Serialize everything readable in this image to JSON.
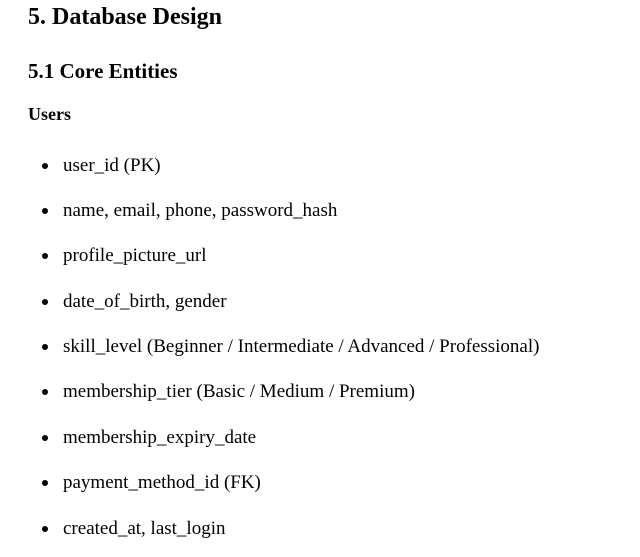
{
  "section": {
    "heading": "5. Database Design",
    "subheading": "5.1 Core Entities",
    "entity": {
      "name": "Users",
      "fields": [
        "user_id (PK)",
        "name, email, phone, password_hash",
        "profile_picture_url",
        "date_of_birth, gender",
        "skill_level (Beginner / Intermediate / Advanced / Professional)",
        "membership_tier (Basic / Medium / Premium)",
        "membership_expiry_date",
        "payment_method_id (FK)",
        "created_at, last_login"
      ]
    }
  }
}
